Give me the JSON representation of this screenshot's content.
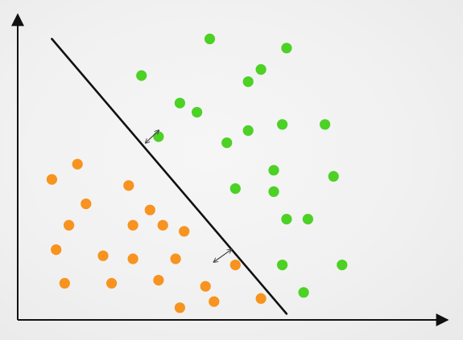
{
  "chart_data": {
    "type": "scatter",
    "title": "",
    "xlabel": "",
    "ylabel": "",
    "xlim": [
      0,
      100
    ],
    "ylim": [
      0,
      100
    ],
    "grid": false,
    "series": [
      {
        "color": "#f7931e",
        "points": [
          [
            8,
            46
          ],
          [
            14,
            51
          ],
          [
            16,
            38
          ],
          [
            12,
            31
          ],
          [
            9,
            23
          ],
          [
            11,
            12
          ],
          [
            26,
            44
          ],
          [
            31,
            36
          ],
          [
            27,
            31
          ],
          [
            34,
            31
          ],
          [
            39,
            29
          ],
          [
            20,
            21
          ],
          [
            27,
            20
          ],
          [
            37,
            20
          ],
          [
            33,
            13
          ],
          [
            22,
            12
          ],
          [
            44,
            11
          ],
          [
            38,
            4
          ],
          [
            46,
            6
          ],
          [
            51,
            18
          ],
          [
            57,
            7
          ]
        ]
      },
      {
        "color": "#4cd125",
        "points": [
          [
            45,
            92
          ],
          [
            63,
            89
          ],
          [
            57,
            82
          ],
          [
            29,
            80
          ],
          [
            54,
            78
          ],
          [
            38,
            71
          ],
          [
            42,
            68
          ],
          [
            33,
            60
          ],
          [
            54,
            62
          ],
          [
            62,
            64
          ],
          [
            49,
            58
          ],
          [
            72,
            64
          ],
          [
            60,
            49
          ],
          [
            51,
            43
          ],
          [
            60,
            42
          ],
          [
            74,
            47
          ],
          [
            63,
            33
          ],
          [
            68,
            33
          ],
          [
            62,
            18
          ],
          [
            76,
            18
          ],
          [
            67,
            9
          ]
        ]
      }
    ],
    "boundary": [
      [
        8,
        92
      ],
      [
        63,
        2
      ]
    ],
    "margins": [
      {
        "from": [
          30,
          58
        ],
        "to": [
          33,
          62
        ]
      },
      {
        "from": [
          46,
          19
        ],
        "to": [
          50,
          23
        ]
      }
    ],
    "colors": {
      "axis": "#111111",
      "boundary": "#111111",
      "margin_arrow": "#444444",
      "background": "#f1f1f1"
    }
  }
}
